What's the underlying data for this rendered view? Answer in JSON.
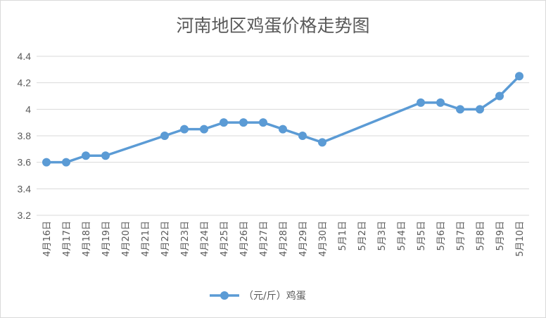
{
  "chart_data": {
    "type": "line",
    "title": "河南地区鸡蛋价格走势图",
    "xlabel": "",
    "ylabel": "",
    "ylim": [
      3.2,
      4.4
    ],
    "y_ticks": [
      "3.2",
      "3.4",
      "3.6",
      "3.8",
      "4",
      "4.2",
      "4.4"
    ],
    "grid": true,
    "legend_position": "bottom",
    "categories": [
      "4月16日",
      "4月17日",
      "4月18日",
      "4月19日",
      "4月20日",
      "4月21日",
      "4月22日",
      "4月23日",
      "4月24日",
      "4月25日",
      "4月26日",
      "4月27日",
      "4月28日",
      "4月29日",
      "4月30日",
      "5月1日",
      "5月2日",
      "5月3日",
      "5月4日",
      "5月5日",
      "5月6日",
      "5月7日",
      "5月8日",
      "5月9日",
      "5月10日"
    ],
    "series": [
      {
        "name": "（元/斤）鸡蛋",
        "color": "#5b9bd5",
        "values": [
          3.6,
          3.6,
          3.65,
          3.65,
          null,
          null,
          3.8,
          3.85,
          3.85,
          3.9,
          3.9,
          3.9,
          3.85,
          3.8,
          3.75,
          null,
          null,
          null,
          null,
          4.05,
          4.05,
          4.0,
          4.0,
          4.1,
          4.25
        ]
      }
    ]
  }
}
